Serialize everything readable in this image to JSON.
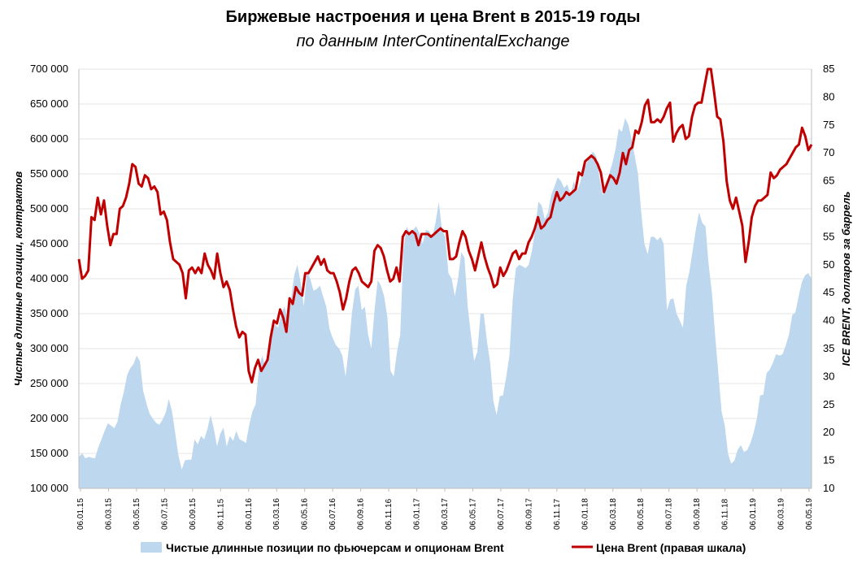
{
  "title": "Биржевые настроения и цена Brent в 2015-19 годы",
  "subtitle": "по данным InterContinentalExchange",
  "colors": {
    "area": "#bdd7ee",
    "line": "#c00000",
    "grid": "#e6e6e6",
    "axis": "#bfbfbf"
  },
  "chart_data": {
    "type": "area+line",
    "x_tick_labels": [
      "06.01.15",
      "06.03.15",
      "06.05.15",
      "06.07.15",
      "06.09.15",
      "06.11.15",
      "06.01.16",
      "06.03.16",
      "06.05.16",
      "06.07.16",
      "06.09.16",
      "06.11.16",
      "06.01.17",
      "06.03.17",
      "06.05.17",
      "06.07.17",
      "06.09.17",
      "06.11.17",
      "06.01.18",
      "06.03.18",
      "06.05.18",
      "06.07.18",
      "06.09.18",
      "06.11.18",
      "06.01.19",
      "06.03.19",
      "06.05.19"
    ],
    "y_left": {
      "label": "Чистые длинные позиции, контрактов",
      "ylim": [
        100000,
        700000
      ],
      "ticks": [
        "100 000",
        "150 000",
        "200 000",
        "250 000",
        "300 000",
        "350 000",
        "400 000",
        "450 000",
        "500 000",
        "550 000",
        "600 000",
        "650 000",
        "700 000"
      ]
    },
    "y_right": {
      "label": "ICE BRENT, долларов за баррель",
      "ylim": [
        10,
        85
      ],
      "ticks": [
        "10",
        "15",
        "20",
        "25",
        "30",
        "35",
        "40",
        "45",
        "50",
        "55",
        "60",
        "65",
        "70",
        "75",
        "80",
        "85"
      ]
    },
    "grid": true,
    "legend_position": "bottom",
    "series": [
      {
        "name": "Чистые длинные позиции по фьючерсам и опционам Brent",
        "type": "area",
        "axis": "left",
        "values": [
          145000,
          150000,
          143000,
          145000,
          144000,
          143000,
          158000,
          170000,
          182000,
          193000,
          190000,
          186000,
          195000,
          220000,
          238000,
          262000,
          272000,
          278000,
          290000,
          282000,
          240000,
          222000,
          207000,
          200000,
          194000,
          191000,
          198000,
          208000,
          228000,
          210000,
          178000,
          147000,
          127000,
          140000,
          141000,
          141000,
          170000,
          163000,
          175000,
          170000,
          185000,
          205000,
          185000,
          160000,
          178000,
          187000,
          160000,
          175000,
          168000,
          182000,
          170000,
          168000,
          165000,
          190000,
          210000,
          220000,
          270000,
          290000,
          275000,
          300000,
          320000,
          335000,
          330000,
          350000,
          360000,
          342000,
          370000,
          405000,
          420000,
          395000,
          360000,
          410000,
          400000,
          383000,
          385000,
          390000,
          375000,
          360000,
          328000,
          315000,
          305000,
          300000,
          290000,
          260000,
          300000,
          352000,
          385000,
          390000,
          355000,
          360000,
          320000,
          300000,
          355000,
          398000,
          390000,
          375000,
          345000,
          268000,
          260000,
          295000,
          320000,
          440000,
          475000,
          465000,
          470000,
          475000,
          465000,
          450000,
          470000,
          468000,
          460000,
          480000,
          510000,
          470000,
          460000,
          408000,
          400000,
          375000,
          400000,
          438000,
          430000,
          360000,
          320000,
          282000,
          295000,
          350000,
          350000,
          310000,
          280000,
          225000,
          205000,
          232000,
          233000,
          260000,
          290000,
          370000,
          415000,
          420000,
          418000,
          415000,
          420000,
          440000,
          470000,
          510000,
          505000,
          485000,
          495000,
          520000,
          532000,
          545000,
          540000,
          530000,
          535000,
          520000,
          540000,
          525000,
          538000,
          555000,
          565000,
          575000,
          582000,
          575000,
          545000,
          520000,
          528000,
          550000,
          565000,
          585000,
          615000,
          610000,
          630000,
          620000,
          600000,
          575000,
          550000,
          495000,
          450000,
          435000,
          460000,
          460000,
          455000,
          460000,
          450000,
          355000,
          370000,
          372000,
          350000,
          340000,
          330000,
          390000,
          410000,
          440000,
          470000,
          495000,
          480000,
          475000,
          420000,
          380000,
          320000,
          265000,
          210000,
          190000,
          150000,
          135000,
          140000,
          155000,
          162000,
          152000,
          155000,
          165000,
          180000,
          200000,
          233000,
          234000,
          265000,
          270000,
          280000,
          292000,
          290000,
          292000,
          305000,
          320000,
          348000,
          352000,
          375000,
          395000,
          405000,
          408000,
          400000
        ]
      },
      {
        "name": "Цена Brent (правая шкала)",
        "type": "line",
        "axis": "right",
        "values": [
          51,
          47.5,
          48,
          49,
          58.5,
          58,
          62,
          59,
          61.5,
          57,
          53.5,
          55.5,
          55.5,
          60,
          60.5,
          62,
          64.5,
          68,
          67.5,
          64.5,
          64,
          66,
          65.5,
          63.5,
          64,
          63,
          59,
          59.5,
          58,
          54,
          51,
          50.5,
          50,
          48.5,
          44,
          49,
          49.5,
          48.5,
          49.5,
          48.5,
          52,
          50,
          49,
          47.5,
          52,
          48.5,
          46,
          47,
          45.5,
          42,
          39,
          37,
          38,
          37.5,
          31,
          29,
          31.5,
          33,
          31,
          32,
          33,
          37,
          40,
          39.5,
          42,
          40.5,
          38,
          44,
          43,
          46,
          45,
          44.5,
          48.5,
          48.5,
          49.5,
          50.5,
          51.5,
          50,
          51,
          49,
          48.5,
          48.5,
          47,
          45,
          42,
          44,
          47,
          49,
          49.5,
          48.5,
          47,
          46.5,
          46,
          47,
          52.5,
          53.5,
          53,
          51.5,
          49,
          47,
          47.5,
          49.5,
          47,
          55,
          56,
          55.5,
          56,
          55.5,
          53.5,
          55.5,
          55.5,
          55.5,
          55,
          55.5,
          56,
          56.5,
          56,
          56,
          51,
          51,
          51.5,
          54,
          56,
          55,
          52.5,
          51,
          49,
          51.5,
          54,
          51.5,
          49.5,
          48,
          46,
          46.5,
          49.5,
          48,
          49,
          50.5,
          52,
          52.5,
          51,
          52,
          52,
          54,
          55,
          56.5,
          58.5,
          56.5,
          57,
          58,
          58.5,
          61,
          63,
          61.5,
          62,
          63,
          62.5,
          63,
          63.5,
          66.5,
          66,
          68.5,
          69,
          69.5,
          69,
          68,
          66.5,
          63,
          64.5,
          66,
          65.5,
          64.5,
          66.5,
          70,
          68,
          70.5,
          71,
          74,
          73.5,
          75.5,
          78.5,
          79.5,
          75.5,
          75.5,
          76,
          75.5,
          76.5,
          78,
          79,
          72,
          73.5,
          74.5,
          75,
          72.5,
          73,
          76.5,
          78.5,
          79,
          79,
          82,
          85,
          85,
          81,
          76.5,
          76,
          72,
          65,
          61.5,
          60,
          62,
          59.5,
          57,
          50.5,
          54,
          58.5,
          60.5,
          61.5,
          61.5,
          62,
          62.5,
          66.5,
          65.5,
          66,
          67,
          67.5,
          68,
          69,
          70,
          71,
          71.5,
          74.5,
          73,
          70.5,
          71.5
        ]
      }
    ]
  }
}
